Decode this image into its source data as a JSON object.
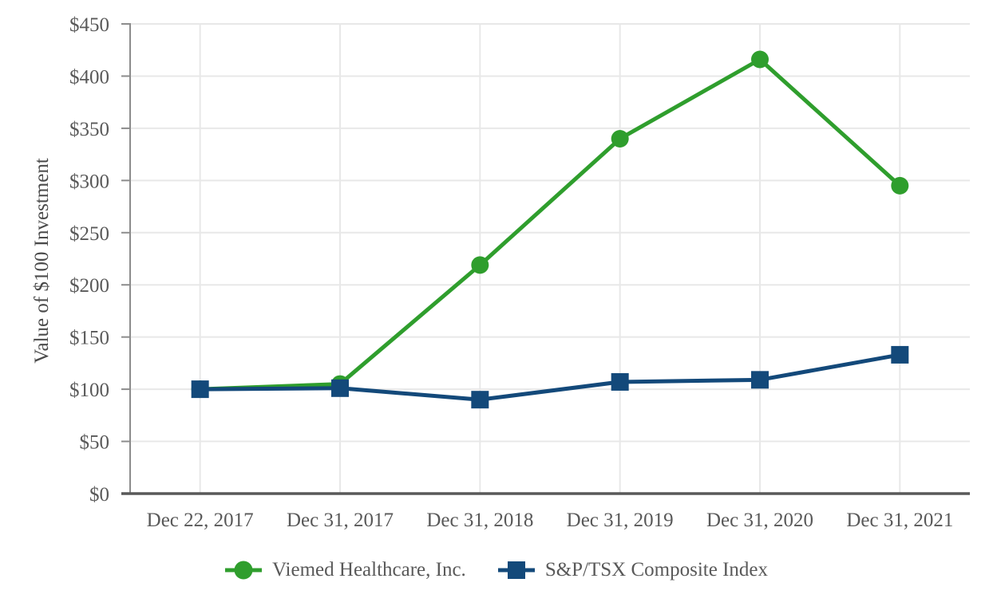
{
  "chart_data": {
    "type": "line",
    "ylabel": "Value of $100 Investment",
    "categories": [
      "Dec 22, 2017",
      "Dec 31, 2017",
      "Dec 31, 2018",
      "Dec 31, 2019",
      "Dec 31, 2020",
      "Dec 31, 2021"
    ],
    "series": [
      {
        "name": "Viemed Healthcare, Inc.",
        "marker": "circle",
        "color": "#2f9e2d",
        "values": [
          100,
          105,
          219,
          340,
          416,
          295
        ]
      },
      {
        "name": "S&P/TSX Composite Index",
        "marker": "square",
        "color": "#13497a",
        "values": [
          100,
          101,
          90,
          107,
          109,
          133
        ]
      }
    ],
    "ylim": [
      0,
      450
    ],
    "ytick_step": 50,
    "ytick_prefix": "$",
    "grid": true,
    "legend_position": "bottom",
    "colors": {
      "grid": "#e8e8e8",
      "y_axis": "#8c8c8c",
      "x_axis": "#595959",
      "tick_text": "#595959",
      "axis_title_text": "#4a4a4a"
    }
  }
}
